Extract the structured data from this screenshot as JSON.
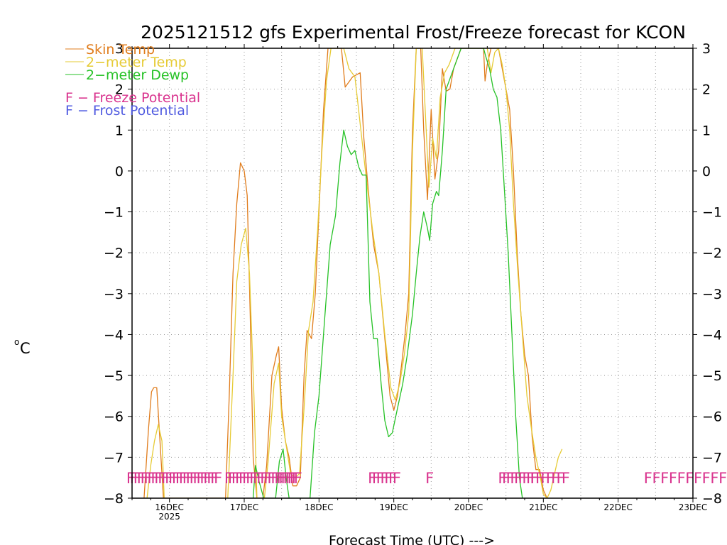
{
  "colors": {
    "skin": "#e07c1c",
    "temp2m": "#e6cb35",
    "dewp2m": "#27c227",
    "freeze": "#d9338e",
    "frost": "#4f5ae0",
    "grid": "#999999",
    "axis": "#000000"
  },
  "chart_data": {
    "type": "line",
    "title": "2025121512 gfs Experimental Frost/Freeze forecast for KCON",
    "xlabel": "Forecast Time (UTC) --->",
    "ylabel": "°C",
    "ylabel_superscript": "o",
    "ylabel_unit": "C",
    "ylim": [
      -8,
      3
    ],
    "x_unit": "days since 15DEC 00Z",
    "xlim": [
      0.5,
      8.0
    ],
    "grid": true,
    "y_ticks": [
      -8,
      -7,
      -6,
      -5,
      -4,
      -3,
      -2,
      -1,
      0,
      1,
      2,
      3
    ],
    "y_tick_labels": [
      "−8",
      "−7",
      "−6",
      "−5",
      "−4",
      "−3",
      "−2",
      "−1",
      "0",
      "1",
      "2",
      "3"
    ],
    "x_ticks": [
      {
        "x": 1,
        "label": "16DEC",
        "sublabel": "2025"
      },
      {
        "x": 2,
        "label": "17DEC",
        "sublabel": ""
      },
      {
        "x": 3,
        "label": "18DEC",
        "sublabel": ""
      },
      {
        "x": 4,
        "label": "19DEC",
        "sublabel": ""
      },
      {
        "x": 5,
        "label": "20DEC",
        "sublabel": ""
      },
      {
        "x": 6,
        "label": "21DEC",
        "sublabel": ""
      },
      {
        "x": 7,
        "label": "22DEC",
        "sublabel": ""
      },
      {
        "x": 8,
        "label": "23DEC",
        "sublabel": ""
      }
    ],
    "legend": {
      "position": "top-left",
      "series_entries": [
        "Skin Temp",
        "2−meter Temp",
        "2−meter Dewp"
      ],
      "freeze_entry": "F − Freeze Potential",
      "frost_entry": "F − Frost Potential"
    },
    "series": [
      {
        "name": "Skin Temp",
        "color_key": "skin",
        "points": [
          [
            0.66,
            -8
          ],
          [
            0.72,
            -6.3
          ],
          [
            0.76,
            -5.4
          ],
          [
            0.79,
            -5.3
          ],
          [
            0.83,
            -5.3
          ],
          [
            0.88,
            -6.8
          ],
          [
            0.92,
            -8
          ],
          [
            1.75,
            -8
          ],
          [
            1.8,
            -5.5
          ],
          [
            1.85,
            -2.5
          ],
          [
            1.9,
            -0.8
          ],
          [
            1.95,
            0.2
          ],
          [
            2.0,
            0.0
          ],
          [
            2.04,
            -0.6
          ],
          [
            2.08,
            -3.5
          ],
          [
            2.12,
            -7.0
          ],
          [
            2.17,
            -8
          ],
          [
            2.25,
            -8
          ],
          [
            2.3,
            -7.2
          ],
          [
            2.37,
            -5.0
          ],
          [
            2.43,
            -4.5
          ],
          [
            2.46,
            -4.3
          ],
          [
            2.5,
            -5.8
          ],
          [
            2.55,
            -6.6
          ],
          [
            2.6,
            -7.0
          ],
          [
            2.65,
            -7.7
          ],
          [
            2.7,
            -7.7
          ],
          [
            2.75,
            -7.5
          ],
          [
            2.8,
            -5.0
          ],
          [
            2.84,
            -3.9
          ],
          [
            2.9,
            -4.1
          ],
          [
            2.95,
            -3.0
          ],
          [
            3.0,
            -1.0
          ],
          [
            3.06,
            1.5
          ],
          [
            3.12,
            3.0
          ],
          [
            3.2,
            3.0
          ],
          [
            3.3,
            3.0
          ],
          [
            3.35,
            2.05
          ],
          [
            3.45,
            2.3
          ],
          [
            3.55,
            2.4
          ],
          [
            3.6,
            0.8
          ],
          [
            3.66,
            -0.5
          ],
          [
            3.73,
            -1.8
          ],
          [
            3.8,
            -2.5
          ],
          [
            3.85,
            -3.5
          ],
          [
            3.9,
            -4.5
          ],
          [
            3.95,
            -5.5
          ],
          [
            4.0,
            -5.85
          ],
          [
            4.05,
            -5.5
          ],
          [
            4.1,
            -4.8
          ],
          [
            4.15,
            -4.0
          ],
          [
            4.2,
            -3.0
          ],
          [
            4.25,
            1.0
          ],
          [
            4.3,
            3.0
          ],
          [
            4.36,
            3.0
          ],
          [
            4.4,
            1.0
          ],
          [
            4.45,
            -0.7
          ],
          [
            4.5,
            1.5
          ],
          [
            4.55,
            -0.2
          ],
          [
            4.6,
            0.5
          ],
          [
            4.65,
            2.5
          ],
          [
            4.7,
            1.95
          ],
          [
            4.75,
            2.0
          ],
          [
            4.8,
            2.5
          ],
          [
            4.9,
            3.0
          ],
          [
            5.2,
            3.0
          ],
          [
            5.22,
            2.2
          ],
          [
            5.25,
            2.6
          ],
          [
            5.3,
            3.0
          ],
          [
            5.35,
            3.0
          ],
          [
            5.4,
            3.0
          ],
          [
            5.45,
            2.5
          ],
          [
            5.5,
            2.0
          ],
          [
            5.55,
            1.5
          ],
          [
            5.6,
            0.0
          ],
          [
            5.65,
            -2.0
          ],
          [
            5.7,
            -3.5
          ],
          [
            5.75,
            -4.5
          ],
          [
            5.8,
            -5.0
          ],
          [
            5.85,
            -6.5
          ],
          [
            5.9,
            -7.3
          ],
          [
            5.95,
            -7.3
          ],
          [
            6.0,
            -7.8
          ],
          [
            6.05,
            -8
          ]
        ]
      },
      {
        "name": "2−meter Temp",
        "color_key": "temp2m",
        "points": [
          [
            0.7,
            -8
          ],
          [
            0.75,
            -7.2
          ],
          [
            0.8,
            -6.6
          ],
          [
            0.85,
            -6.2
          ],
          [
            0.9,
            -6.6
          ],
          [
            0.93,
            -8
          ],
          [
            1.78,
            -8
          ],
          [
            1.85,
            -5.0
          ],
          [
            1.9,
            -2.7
          ],
          [
            1.96,
            -1.8
          ],
          [
            2.02,
            -1.4
          ],
          [
            2.07,
            -2.5
          ],
          [
            2.13,
            -5.5
          ],
          [
            2.17,
            -8
          ],
          [
            2.27,
            -8
          ],
          [
            2.32,
            -7.1
          ],
          [
            2.4,
            -5.2
          ],
          [
            2.46,
            -4.7
          ],
          [
            2.5,
            -6.0
          ],
          [
            2.56,
            -6.7
          ],
          [
            2.62,
            -7.4
          ],
          [
            2.68,
            -7.5
          ],
          [
            2.74,
            -7.4
          ],
          [
            2.8,
            -5.8
          ],
          [
            2.86,
            -3.9
          ],
          [
            2.92,
            -3.2
          ],
          [
            2.98,
            -1.5
          ],
          [
            3.04,
            0.5
          ],
          [
            3.1,
            2.2
          ],
          [
            3.16,
            3.0
          ],
          [
            3.33,
            3.0
          ],
          [
            3.4,
            2.5
          ],
          [
            3.48,
            2.3
          ],
          [
            3.56,
            1.0
          ],
          [
            3.64,
            -0.3
          ],
          [
            3.72,
            -1.5
          ],
          [
            3.8,
            -2.5
          ],
          [
            3.88,
            -4.0
          ],
          [
            3.96,
            -5.3
          ],
          [
            4.02,
            -5.6
          ],
          [
            4.08,
            -5.2
          ],
          [
            4.14,
            -4.5
          ],
          [
            4.2,
            -3.5
          ],
          [
            4.25,
            0.5
          ],
          [
            4.3,
            3.0
          ],
          [
            4.38,
            3.0
          ],
          [
            4.42,
            1.5
          ],
          [
            4.47,
            -0.4
          ],
          [
            4.52,
            0.8
          ],
          [
            4.57,
            0.3
          ],
          [
            4.62,
            1.8
          ],
          [
            4.68,
            2.4
          ],
          [
            4.74,
            2.6
          ],
          [
            4.82,
            3.0
          ],
          [
            5.25,
            3.0
          ],
          [
            5.3,
            2.4
          ],
          [
            5.35,
            2.9
          ],
          [
            5.4,
            3.0
          ],
          [
            5.45,
            2.6
          ],
          [
            5.5,
            2.0
          ],
          [
            5.55,
            1.0
          ],
          [
            5.6,
            -0.8
          ],
          [
            5.66,
            -2.5
          ],
          [
            5.72,
            -4.0
          ],
          [
            5.78,
            -5.5
          ],
          [
            5.84,
            -6.3
          ],
          [
            5.9,
            -7.0
          ],
          [
            5.96,
            -7.5
          ],
          [
            6.0,
            -7.9
          ],
          [
            6.05,
            -8
          ],
          [
            6.1,
            -7.8
          ],
          [
            6.15,
            -7.4
          ],
          [
            6.2,
            -7.0
          ],
          [
            6.25,
            -6.8
          ]
        ]
      },
      {
        "name": "2−meter Dewp",
        "color_key": "dewp2m",
        "points": [
          [
            2.12,
            -8
          ],
          [
            2.15,
            -7.2
          ],
          [
            2.2,
            -7.6
          ],
          [
            2.26,
            -8
          ],
          [
            2.42,
            -8
          ],
          [
            2.47,
            -7.1
          ],
          [
            2.52,
            -6.8
          ],
          [
            2.56,
            -7.5
          ],
          [
            2.6,
            -8
          ],
          [
            2.88,
            -8
          ],
          [
            2.94,
            -6.4
          ],
          [
            3.0,
            -5.5
          ],
          [
            3.08,
            -3.5
          ],
          [
            3.15,
            -1.8
          ],
          [
            3.22,
            -1.1
          ],
          [
            3.28,
            0.2
          ],
          [
            3.33,
            1.0
          ],
          [
            3.38,
            0.6
          ],
          [
            3.43,
            0.4
          ],
          [
            3.48,
            0.5
          ],
          [
            3.53,
            0.1
          ],
          [
            3.58,
            -0.1
          ],
          [
            3.63,
            -0.1
          ],
          [
            3.68,
            -3.2
          ],
          [
            3.73,
            -4.1
          ],
          [
            3.78,
            -4.1
          ],
          [
            3.83,
            -5.2
          ],
          [
            3.88,
            -6.1
          ],
          [
            3.93,
            -6.5
          ],
          [
            3.98,
            -6.4
          ],
          [
            4.05,
            -5.8
          ],
          [
            4.12,
            -5.2
          ],
          [
            4.18,
            -4.5
          ],
          [
            4.25,
            -3.5
          ],
          [
            4.3,
            -2.5
          ],
          [
            4.35,
            -1.6
          ],
          [
            4.4,
            -1.0
          ],
          [
            4.45,
            -1.4
          ],
          [
            4.48,
            -1.7
          ],
          [
            4.52,
            -0.8
          ],
          [
            4.57,
            -0.5
          ],
          [
            4.6,
            -0.6
          ],
          [
            4.65,
            0.5
          ],
          [
            4.7,
            2.0
          ],
          [
            4.8,
            2.5
          ],
          [
            4.9,
            3.0
          ],
          [
            5.2,
            3.0
          ],
          [
            5.23,
            2.8
          ],
          [
            5.28,
            2.5
          ],
          [
            5.33,
            2.0
          ],
          [
            5.38,
            1.8
          ],
          [
            5.43,
            1.0
          ],
          [
            5.48,
            -0.5
          ],
          [
            5.53,
            -2.0
          ],
          [
            5.58,
            -4.0
          ],
          [
            5.63,
            -6.0
          ],
          [
            5.68,
            -7.5
          ],
          [
            5.72,
            -8
          ]
        ]
      }
    ],
    "freeze_marks": {
      "label": "F",
      "y": -7.5,
      "groups": [
        {
          "start": 0.48,
          "end": 1.65,
          "n": 26
        },
        {
          "start": 1.79,
          "end": 2.46,
          "n": 15
        },
        {
          "start": 2.46,
          "end": 2.72,
          "n": 10
        },
        {
          "start": 3.71,
          "end": 4.04,
          "n": 7
        },
        {
          "start": 4.48,
          "end": 4.48,
          "n": 1
        },
        {
          "start": 5.45,
          "end": 5.88,
          "n": 9
        },
        {
          "start": 5.88,
          "end": 6.3,
          "n": 7
        },
        {
          "start": 7.4,
          "end": 8.4,
          "n": 10
        }
      ]
    }
  }
}
